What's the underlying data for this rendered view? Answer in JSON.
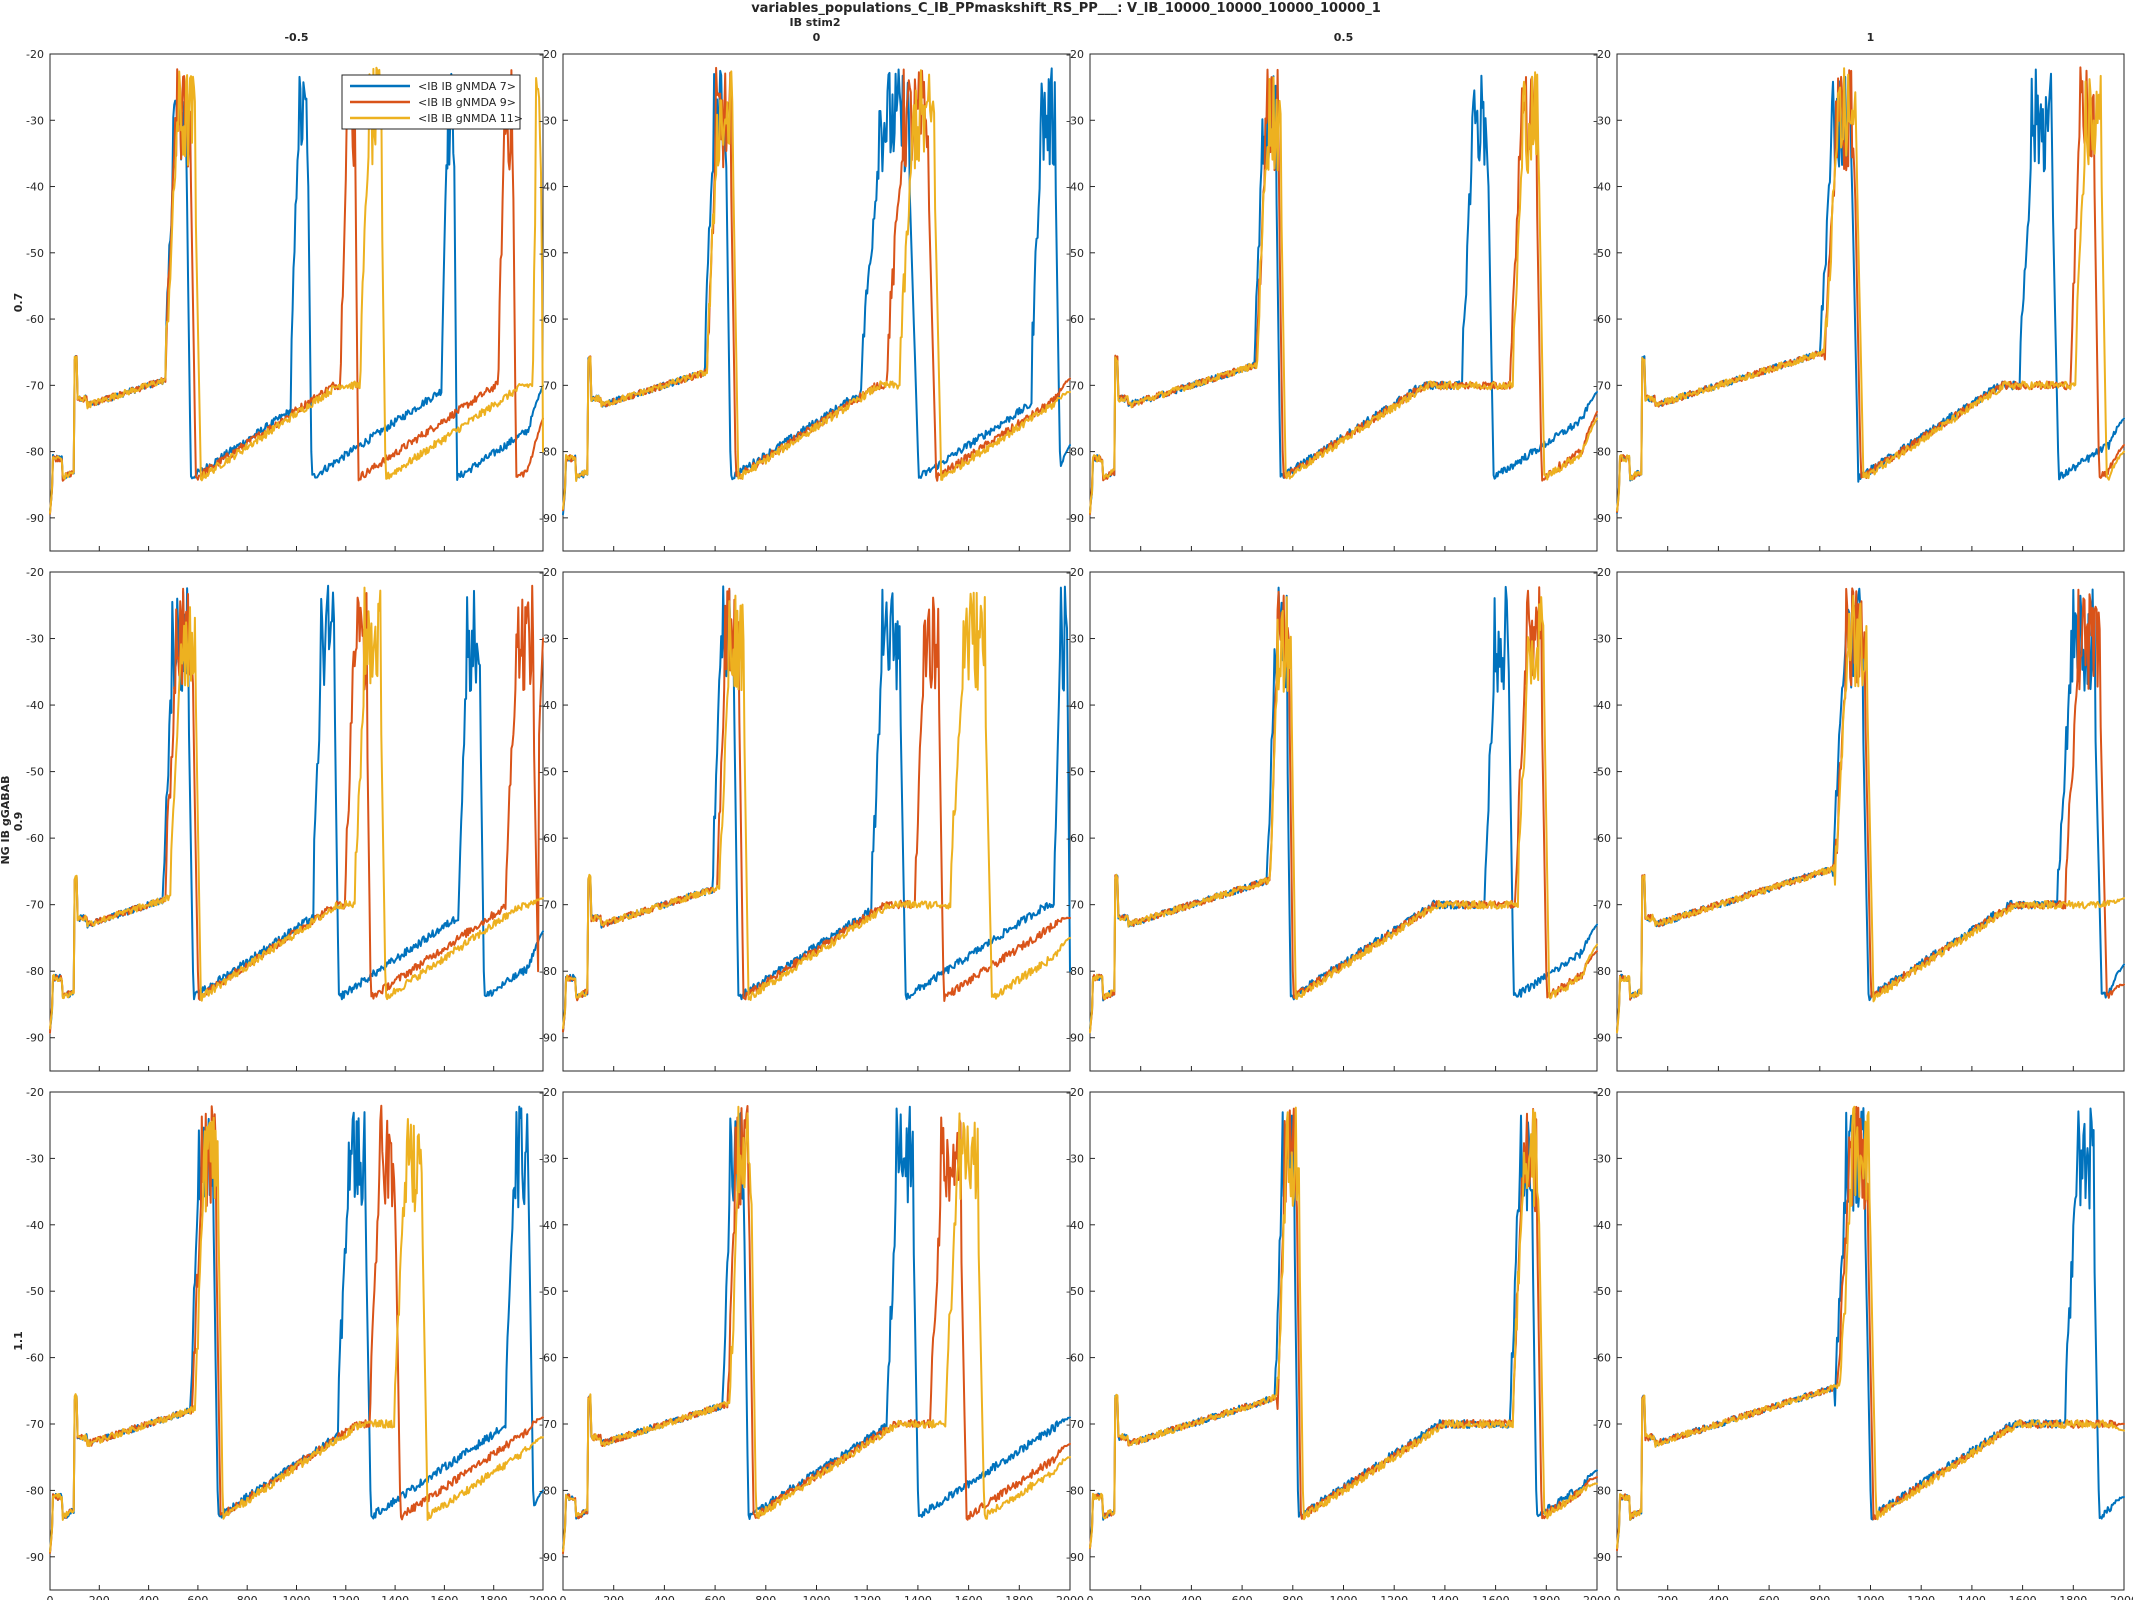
{
  "figure": {
    "title": "variables_populations_C_IB_PPmaskshift_RS_PP___: V_IB_10000_10000_10000_10000_1",
    "column_var": "IB stim2",
    "row_var": "NG IB gGABAB"
  },
  "legend": [
    {
      "label": "<IB IB gNMDA 7>",
      "color": "#0072BD"
    },
    {
      "label": "<IB IB gNMDA 9>",
      "color": "#D95319"
    },
    {
      "label": "<IB IB gNMDA 11>",
      "color": "#EDB120"
    }
  ],
  "chart_data": {
    "type": "line",
    "panel_grid": {
      "rows": 3,
      "cols": 4
    },
    "col_headers": [
      "-0.5",
      "0",
      "0.5",
      "1"
    ],
    "row_headers": [
      "0.7",
      "0.9",
      "1.1"
    ],
    "xlim": [
      0,
      2000
    ],
    "ylim": [
      -95,
      -20
    ],
    "xticks": [
      0,
      200,
      400,
      600,
      800,
      1000,
      1200,
      1400,
      1600,
      1800,
      2000
    ],
    "yticks": [
      -20,
      -30,
      -40,
      -50,
      -60,
      -70,
      -80,
      -90
    ],
    "xlabel": "",
    "ylabel": "",
    "series_names": [
      "<IB IB gNMDA 7>",
      "<IB IB gNMDA 9>",
      "<IB IB gNMDA 11>"
    ],
    "series_colors": [
      "#0072BD",
      "#D95319",
      "#EDB120"
    ],
    "legend_position": "top-left panel, upper-center",
    "panels": [
      {
        "row": 0,
        "col": 0,
        "series": [
          {
            "name": "<IB IB gNMDA 7>",
            "bursts": [
              [
                470,
                570
              ],
              [
                980,
                1060
              ],
              [
                1590,
                1650
              ]
            ],
            "end_v": -70
          },
          {
            "name": "<IB IB gNMDA 9>",
            "bursts": [
              [
                470,
                590
              ],
              [
                1180,
                1250
              ],
              [
                1820,
                1890
              ]
            ],
            "end_v": -75
          },
          {
            "name": "<IB IB gNMDA 11>",
            "bursts": [
              [
                470,
                610
              ],
              [
                1260,
                1360
              ],
              [
                1960,
                2000
              ]
            ],
            "end_v": -22
          }
        ]
      },
      {
        "row": 0,
        "col": 1,
        "series": [
          {
            "name": "<IB IB gNMDA 7>",
            "bursts": [
              [
                560,
                660
              ],
              [
                1180,
                1400
              ],
              [
                1850,
                1960
              ]
            ],
            "end_v": -79
          },
          {
            "name": "<IB IB gNMDA 9>",
            "bursts": [
              [
                570,
                680
              ],
              [
                1280,
                1470
              ]
            ],
            "end_v": -69
          },
          {
            "name": "<IB IB gNMDA 11>",
            "bursts": [
              [
                570,
                690
              ],
              [
                1330,
                1490
              ]
            ],
            "end_v": -71
          }
        ]
      },
      {
        "row": 0,
        "col": 2,
        "series": [
          {
            "name": "<IB IB gNMDA 7>",
            "bursts": [
              [
                650,
                750
              ],
              [
                1470,
                1590
              ]
            ],
            "end_v": -71
          },
          {
            "name": "<IB IB gNMDA 9>",
            "bursts": [
              [
                660,
                760
              ],
              [
                1660,
                1780
              ]
            ],
            "end_v": -74
          },
          {
            "name": "<IB IB gNMDA 11>",
            "bursts": [
              [
                660,
                770
              ],
              [
                1670,
                1790
              ]
            ],
            "end_v": -75
          }
        ]
      },
      {
        "row": 0,
        "col": 3,
        "series": [
          {
            "name": "<IB IB gNMDA 7>",
            "bursts": [
              [
                800,
                950
              ],
              [
                1590,
                1740
              ]
            ],
            "end_v": -75
          },
          {
            "name": "<IB IB gNMDA 9>",
            "bursts": [
              [
                820,
                960
              ],
              [
                1790,
                1900
              ]
            ],
            "end_v": -79
          },
          {
            "name": "<IB IB gNMDA 11>",
            "bursts": [
              [
                820,
                970
              ],
              [
                1810,
                1930
              ]
            ],
            "end_v": -80
          }
        ]
      },
      {
        "row": 1,
        "col": 0,
        "series": [
          {
            "name": "<IB IB gNMDA 7>",
            "bursts": [
              [
                460,
                580
              ],
              [
                1070,
                1170
              ],
              [
                1660,
                1760
              ]
            ],
            "end_v": -74
          },
          {
            "name": "<IB IB gNMDA 9>",
            "bursts": [
              [
                470,
                600
              ],
              [
                1200,
                1300
              ],
              [
                1850,
                1980
              ]
            ],
            "end_v": -30
          },
          {
            "name": "<IB IB gNMDA 11>",
            "bursts": [
              [
                490,
                610
              ],
              [
                1240,
                1360
              ]
            ],
            "end_v": -69
          }
        ]
      },
      {
        "row": 1,
        "col": 1,
        "series": [
          {
            "name": "<IB IB gNMDA 7>",
            "bursts": [
              [
                590,
                690
              ],
              [
                1220,
                1350
              ],
              [
                1940,
                2000
              ]
            ],
            "end_v": -28
          },
          {
            "name": "<IB IB gNMDA 9>",
            "bursts": [
              [
                610,
                710
              ],
              [
                1390,
                1500
              ]
            ],
            "end_v": -72
          },
          {
            "name": "<IB IB gNMDA 11>",
            "bursts": [
              [
                620,
                730
              ],
              [
                1530,
                1690
              ]
            ],
            "end_v": -75
          }
        ]
      },
      {
        "row": 1,
        "col": 2,
        "series": [
          {
            "name": "<IB IB gNMDA 7>",
            "bursts": [
              [
                700,
                790
              ],
              [
                1560,
                1670
              ]
            ],
            "end_v": -73
          },
          {
            "name": "<IB IB gNMDA 9>",
            "bursts": [
              [
                710,
                800
              ],
              [
                1680,
                1800
              ]
            ],
            "end_v": -77
          },
          {
            "name": "<IB IB gNMDA 11>",
            "bursts": [
              [
                710,
                810
              ],
              [
                1690,
                1810
              ]
            ],
            "end_v": -76
          }
        ]
      },
      {
        "row": 1,
        "col": 3,
        "series": [
          {
            "name": "<IB IB gNMDA 7>",
            "bursts": [
              [
                850,
                990
              ],
              [
                1740,
                1910
              ]
            ],
            "end_v": -79
          },
          {
            "name": "<IB IB gNMDA 9>",
            "bursts": [
              [
                860,
                1000
              ],
              [
                1770,
                1930
              ]
            ],
            "end_v": -82
          },
          {
            "name": "<IB IB gNMDA 11>",
            "bursts": [
              [
                860,
                1010
              ]
            ],
            "end_v": -69
          }
        ]
      },
      {
        "row": 2,
        "col": 0,
        "series": [
          {
            "name": "<IB IB gNMDA 7>",
            "bursts": [
              [
                570,
                680
              ],
              [
                1170,
                1300
              ],
              [
                1850,
                1960
              ]
            ],
            "end_v": -80
          },
          {
            "name": "<IB IB gNMDA 9>",
            "bursts": [
              [
                580,
                690
              ],
              [
                1300,
                1420
              ]
            ],
            "end_v": -69
          },
          {
            "name": "<IB IB gNMDA 11>",
            "bursts": [
              [
                590,
                700
              ],
              [
                1400,
                1530
              ]
            ],
            "end_v": -72
          }
        ]
      },
      {
        "row": 2,
        "col": 1,
        "series": [
          {
            "name": "<IB IB gNMDA 7>",
            "bursts": [
              [
                630,
                730
              ],
              [
                1280,
                1400
              ]
            ],
            "end_v": -69
          },
          {
            "name": "<IB IB gNMDA 9>",
            "bursts": [
              [
                650,
                750
              ],
              [
                1450,
                1590
              ]
            ],
            "end_v": -73
          },
          {
            "name": "<IB IB gNMDA 11>",
            "bursts": [
              [
                660,
                760
              ],
              [
                1510,
                1660
              ]
            ],
            "end_v": -75
          }
        ]
      },
      {
        "row": 2,
        "col": 2,
        "series": [
          {
            "name": "<IB IB gNMDA 7>",
            "bursts": [
              [
                730,
                820
              ],
              [
                1660,
                1760
              ]
            ],
            "end_v": -77
          },
          {
            "name": "<IB IB gNMDA 9>",
            "bursts": [
              [
                740,
                830
              ],
              [
                1670,
                1780
              ]
            ],
            "end_v": -78
          },
          {
            "name": "<IB IB gNMDA 11>",
            "bursts": [
              [
                740,
                840
              ],
              [
                1670,
                1790
              ]
            ],
            "end_v": -79
          }
        ]
      },
      {
        "row": 2,
        "col": 3,
        "series": [
          {
            "name": "<IB IB gNMDA 7>",
            "bursts": [
              [
                860,
                1000
              ],
              [
                1770,
                1900
              ]
            ],
            "end_v": -81
          },
          {
            "name": "<IB IB gNMDA 9>",
            "bursts": [
              [
                870,
                1010
              ]
            ],
            "end_v": -70
          },
          {
            "name": "<IB IB gNMDA 11>",
            "bursts": [
              [
                880,
                1020
              ]
            ],
            "end_v": -71
          }
        ]
      }
    ]
  }
}
